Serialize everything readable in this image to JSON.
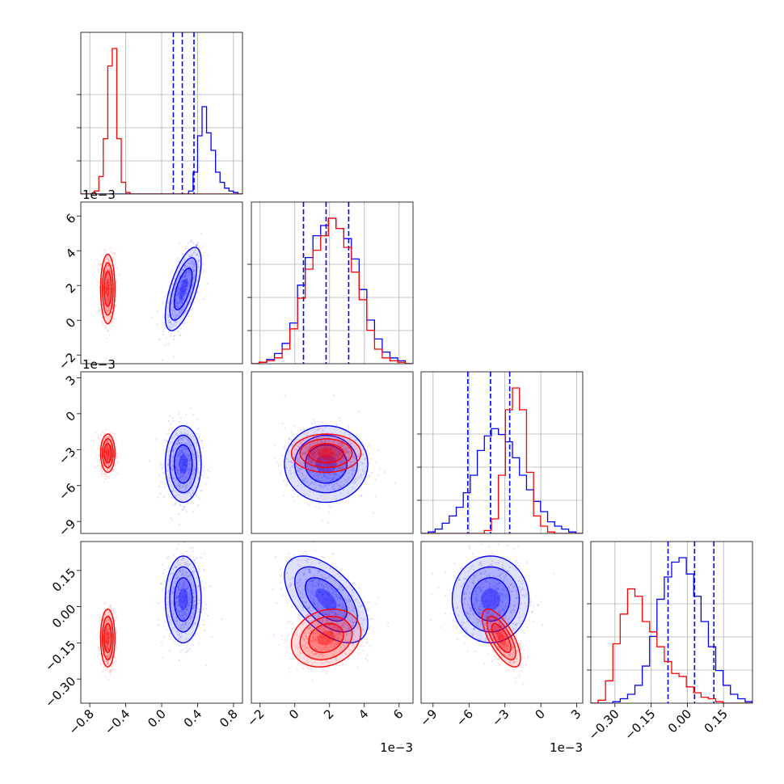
{
  "chart_data": {
    "type": "corner",
    "title": "",
    "grid": true,
    "colors": {
      "series_a": "#0000ff",
      "series_b": "#ff0000"
    },
    "parameters": [
      {
        "index": 0,
        "range": [
          -0.9,
          0.9
        ],
        "ticks": [
          "−0.8",
          "−0.4",
          "0.0",
          "0.4",
          "0.8"
        ],
        "tick_values": [
          -0.8,
          -0.4,
          0.0,
          0.4,
          0.8
        ],
        "offset_text": ""
      },
      {
        "index": 1,
        "range": [
          -2.5,
          6.8
        ],
        "ticks": [
          "−2",
          "0",
          "2",
          "4",
          "6"
        ],
        "tick_values": [
          -2,
          0,
          2,
          4,
          6
        ],
        "offset_text": "1e−3"
      },
      {
        "index": 2,
        "range": [
          -10,
          3.5
        ],
        "ticks": [
          "−9",
          "−6",
          "−3",
          "0",
          "3"
        ],
        "tick_values": [
          -9,
          -6,
          -3,
          0,
          3
        ],
        "offset_text": "1e−3"
      },
      {
        "index": 3,
        "range": [
          -0.4,
          0.27
        ],
        "ticks": [
          "−0.30",
          "−0.15",
          "0.00",
          "0.15"
        ],
        "tick_values": [
          -0.3,
          -0.15,
          0.0,
          0.15
        ],
        "offset_text": ""
      }
    ],
    "series": [
      {
        "color": "#0000ff",
        "mean": [
          0.24,
          1.8,
          -4.2,
          0.03
        ],
        "std": [
          0.1,
          1.2,
          1.6,
          0.09
        ],
        "quantiles": [
          [
            0.13,
            0.23,
            0.36
          ],
          [
            0.5,
            1.8,
            3.1
          ],
          [
            -6.1,
            -4.2,
            -2.6
          ],
          [
            -0.08,
            0.03,
            0.11
          ]
        ],
        "hist_values": [
          [
            0,
            0,
            0,
            0,
            0,
            0,
            0,
            0,
            0,
            0,
            0,
            0,
            0,
            0,
            0,
            0,
            0,
            0,
            0,
            0,
            0,
            0,
            0,
            0,
            2,
            15,
            40,
            60,
            42,
            30,
            15,
            8,
            4,
            2,
            1,
            0
          ],
          [
            0,
            1,
            3,
            7,
            14,
            28,
            54,
            73,
            88,
            95,
            100,
            93,
            86,
            72,
            51,
            30,
            17,
            8,
            4,
            2,
            0
          ],
          [
            0,
            1,
            3,
            7,
            12,
            18,
            28,
            40,
            57,
            67,
            72,
            68,
            63,
            52,
            40,
            30,
            22,
            15,
            8,
            5,
            3,
            1,
            0
          ],
          [
            0,
            0,
            0,
            1,
            3,
            6,
            12,
            25,
            45,
            70,
            85,
            95,
            98,
            87,
            72,
            55,
            38,
            22,
            12,
            6,
            3,
            1
          ]
        ]
      },
      {
        "color": "#ff0000",
        "mean": [
          -0.6,
          1.8,
          -3.3,
          -0.13
        ],
        "std": [
          0.04,
          1.0,
          0.8,
          0.06
        ],
        "quantiles": [],
        "hist_values": [
          [
            0,
            0,
            0,
            2,
            12,
            38,
            88,
            100,
            38,
            8,
            1,
            0,
            0,
            0,
            0,
            0,
            0,
            0,
            0,
            0,
            0,
            0,
            0,
            0,
            0,
            0,
            0,
            0,
            0,
            0,
            0,
            0,
            0,
            0,
            0,
            0
          ],
          [
            0,
            1,
            2,
            4,
            10,
            24,
            45,
            65,
            78,
            88,
            100,
            93,
            80,
            63,
            44,
            23,
            10,
            4,
            2,
            1,
            0
          ],
          [
            0,
            0,
            0,
            0,
            0,
            0,
            0,
            0,
            0,
            2,
            10,
            40,
            85,
            100,
            85,
            42,
            12,
            5,
            1,
            0,
            0,
            0,
            0
          ],
          [
            0,
            2,
            15,
            40,
            60,
            77,
            72,
            55,
            48,
            38,
            28,
            20,
            18,
            11,
            7,
            4,
            3,
            1,
            0,
            0,
            0,
            0
          ]
        ]
      }
    ],
    "correlations": {
      "0-1": [
        0.65,
        0.0
      ],
      "0-2": [
        0.0,
        0.0
      ],
      "0-3": [
        0.0,
        0.0
      ],
      "1-2": [
        0.0,
        0.0
      ],
      "1-3": [
        -0.55,
        0.2
      ],
      "2-3": [
        0.0,
        -0.7
      ]
    }
  }
}
